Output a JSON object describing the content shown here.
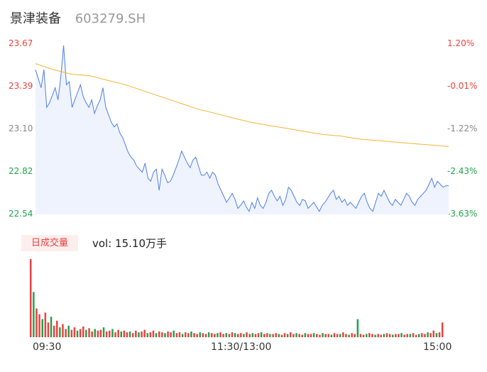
{
  "header": {
    "name": "景津装备",
    "code": "603279.SH"
  },
  "volume": {
    "badge": "日成交量",
    "text": "vol: 15.10万手"
  },
  "colors": {
    "up": "#e8423f",
    "down": "#1ea34b",
    "line": "#4f7fe8",
    "avg": "#f4b333",
    "neutral": "#888888"
  },
  "chart_data": {
    "type": "line",
    "y_left_ticks": [
      "23.67",
      "23.39",
      "23.10",
      "22.82",
      "22.54"
    ],
    "y_right_ticks": [
      "1.20%",
      "-0.01%",
      "-1.22%",
      "-2.43%",
      "-3.63%"
    ],
    "x_ticks": [
      "09:30",
      "11:30/13:00",
      "15:00"
    ],
    "ylim": [
      22.54,
      23.67
    ],
    "series": [
      {
        "values": [
          23.5,
          23.44,
          23.38,
          23.5,
          23.25,
          23.28,
          23.33,
          23.38,
          23.3,
          23.45,
          23.66,
          23.4,
          23.42,
          23.25,
          23.3,
          23.35,
          23.4,
          23.32,
          23.28,
          23.25,
          23.3,
          23.21,
          23.26,
          23.3,
          23.38,
          23.25,
          23.2,
          23.15,
          23.12,
          23.14,
          23.08,
          23.05,
          23.0,
          22.95,
          22.92,
          22.9,
          22.86,
          22.84,
          22.82,
          22.88,
          22.78,
          22.76,
          22.82,
          22.84,
          22.7,
          22.84,
          22.8,
          22.75,
          22.76,
          22.8,
          22.85,
          22.9,
          22.96,
          22.92,
          22.88,
          22.85,
          22.9,
          22.92,
          22.86,
          22.8,
          22.8,
          22.82,
          22.78,
          22.82,
          22.8,
          22.74,
          22.7,
          22.66,
          22.62,
          22.65,
          22.68,
          22.64,
          22.58,
          22.6,
          22.63,
          22.59,
          22.56,
          22.62,
          22.58,
          22.65,
          22.6,
          22.58,
          22.62,
          22.68,
          22.7,
          22.66,
          22.63,
          22.66,
          22.6,
          22.64,
          22.72,
          22.7,
          22.66,
          22.62,
          22.6,
          22.64,
          22.63,
          22.58,
          22.6,
          22.62,
          22.59,
          22.56,
          22.6,
          22.62,
          22.65,
          22.68,
          22.7,
          22.64,
          22.66,
          22.62,
          22.64,
          22.6,
          22.62,
          22.6,
          22.58,
          22.62,
          22.66,
          22.68,
          22.62,
          22.58,
          22.56,
          22.62,
          22.68,
          22.66,
          22.7,
          22.66,
          22.62,
          22.6,
          22.64,
          22.62,
          22.6,
          22.64,
          22.68,
          22.66,
          22.62,
          22.6,
          22.64,
          22.66,
          22.68,
          22.7,
          22.74,
          22.78,
          22.72,
          22.76,
          22.74,
          22.72,
          22.73,
          22.73
        ]
      },
      {
        "values": [
          23.54,
          23.5,
          23.47,
          23.46,
          23.43,
          23.4,
          23.36,
          23.32,
          23.28,
          23.24,
          23.21,
          23.18,
          23.15,
          23.13,
          23.11,
          23.09,
          23.07,
          23.06,
          23.04,
          23.03,
          23.02,
          23.01,
          23.0,
          22.99
        ]
      }
    ],
    "volume": [
      95,
      55,
      35,
      28,
      22,
      30,
      18,
      25,
      14,
      20,
      12,
      16,
      10,
      14,
      9,
      12,
      8,
      10,
      13,
      9,
      11,
      7,
      10,
      8,
      9,
      12,
      7,
      8,
      10,
      6,
      9,
      7,
      8,
      6,
      7,
      5,
      8,
      6,
      7,
      9,
      5,
      6,
      8,
      5,
      7,
      6,
      5,
      7,
      6,
      8,
      5,
      6,
      4,
      6,
      5,
      7,
      5,
      4,
      6,
      5,
      4,
      6,
      5,
      4,
      5,
      6,
      4,
      5,
      4,
      6,
      5,
      4,
      5,
      4,
      6,
      4,
      5,
      4,
      5,
      6,
      4,
      5,
      4,
      4,
      5,
      4,
      3,
      5,
      4,
      6,
      4,
      5,
      4,
      3,
      5,
      4,
      4,
      5,
      4,
      3,
      5,
      4,
      4,
      3,
      5,
      4,
      4,
      6,
      4,
      3,
      5,
      4,
      22,
      4,
      3,
      4,
      5,
      4,
      3,
      4,
      3,
      4,
      5,
      4,
      3,
      4,
      4,
      5,
      3,
      4,
      4,
      5,
      3,
      4,
      5,
      4,
      6,
      5,
      8,
      5,
      6,
      18
    ]
  }
}
